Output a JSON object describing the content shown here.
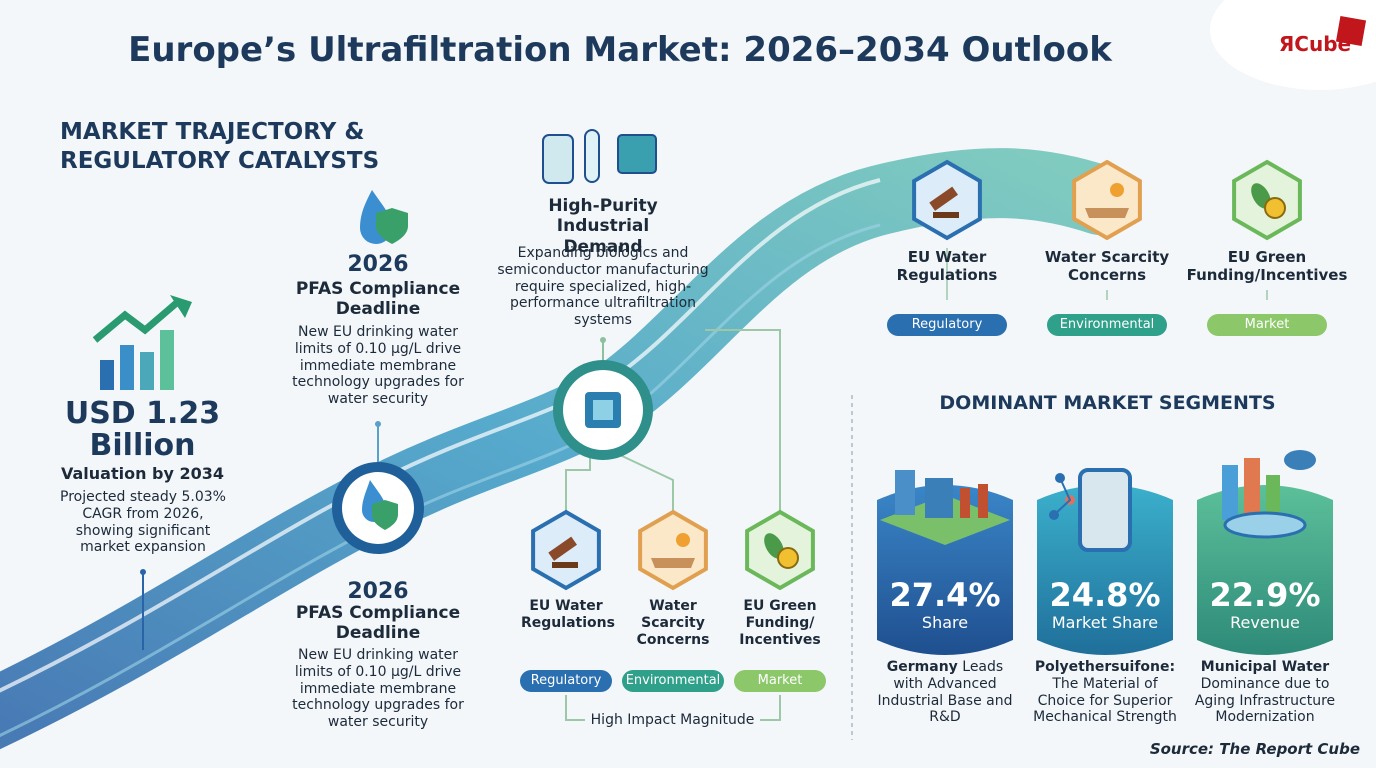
{
  "header": {
    "title": "Europe’s Ultrafiltration Market: 2026–2034 Outlook",
    "logo": "ЯCube"
  },
  "trajectory": {
    "heading": "MARKET TRAJECTORY & REGULATORY CATALYSTS"
  },
  "valuation": {
    "amount": "USD 1.23 Billion",
    "label": "Valuation by 2034",
    "text": "Projected steady 5.03% CAGR from 2026, showing significant market expansion"
  },
  "milestones": [
    {
      "year": "2026",
      "title": "PFAS Compliance Deadline",
      "text": "New EU drinking water limits of 0.10 µg/L drive immediate membrane technology upgrades for water security"
    },
    {
      "year": "2026",
      "title": "PFAS Compliance Deadline",
      "text": "New EU drinking water limits of 0.10 µg/L drive immediate membrane technology upgrades for water security"
    },
    {
      "title": "High-Purity Industrial Demand",
      "text": "Expanding biologics and semiconductor manufacturing require specialized, high-performance ultrafiltration systems"
    }
  ],
  "drivers_top": [
    {
      "label": "EU Water Regulations",
      "tag": "Regulatory"
    },
    {
      "label": "Water Scarcity Concerns",
      "tag": "Environmental"
    },
    {
      "label": "EU Green Funding/Incentives",
      "tag": "Market"
    }
  ],
  "drivers_bottom": {
    "items": [
      {
        "label": "EU Water Regulations",
        "tag": "Regulatory"
      },
      {
        "label": "Water Scarcity Concerns",
        "tag": "Environmental"
      },
      {
        "label": "EU Green Funding/ Incentives",
        "tag": "Market"
      }
    ],
    "impact": "High Impact Magnitude"
  },
  "segments": {
    "heading": "DOMINANT MARKET SEGMENTS",
    "items": [
      {
        "value": "27.4%",
        "metric": "Share",
        "name": "Germany",
        "text": "Leads with Advanced Industrial Base and R&D"
      },
      {
        "value": "24.8%",
        "metric": "Market Share",
        "name": "Polyethersuifone:",
        "text": "The Material of Choice for Superior Mechanical Strength"
      },
      {
        "value": "22.9%",
        "metric": "Revenue",
        "name": "Municipal Water",
        "text": "Dominance due to Aging Infrastructure Modernization"
      }
    ]
  },
  "source": "Source: The Report Cube"
}
